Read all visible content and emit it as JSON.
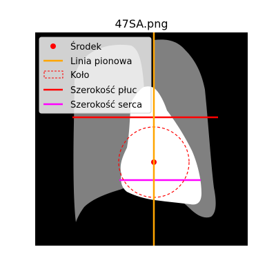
{
  "figure": {
    "title": "47SA.png"
  },
  "legend": {
    "entries": [
      {
        "key": "center",
        "label": "Środek",
        "color": "#ff0000",
        "marker": "dot"
      },
      {
        "key": "vertical",
        "label": "Linia pionowa",
        "color": "#ffa500",
        "marker": "line"
      },
      {
        "key": "circle",
        "label": "Koło",
        "color": "#ff0000",
        "marker": "dashed-rect"
      },
      {
        "key": "lungs",
        "label": "Szerokość płuc",
        "color": "#ff0000",
        "marker": "line"
      },
      {
        "key": "heart",
        "label": "Szerokość serca",
        "color": "#ff00ff",
        "marker": "line"
      }
    ]
  },
  "colors": {
    "background": "#000000",
    "lung": "#808080",
    "heart": "#ffffff",
    "vertical_line": "#ffa500",
    "lung_width_line": "#ff0000",
    "heart_width_line": "#ff00ff",
    "circle": "#ff0000",
    "center": "#ff0000"
  }
}
